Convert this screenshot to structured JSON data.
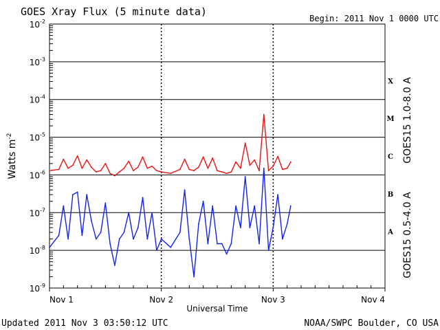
{
  "header": {
    "title": "GOES Xray Flux (5 minute data)",
    "begin": "Begin:  2011 Nov 1 0000 UTC"
  },
  "footer": {
    "updated": "Updated 2011 Nov  3 03:50:12 UTC",
    "credit": "NOAA/SWPC Boulder, CO USA"
  },
  "colors": {
    "long_channel": "#ee1111",
    "short_channel": "#1122ee",
    "grid": "#000000",
    "background": "#ffffff"
  },
  "chart_data": {
    "type": "line",
    "title": "GOES Xray Flux (5 minute data)",
    "xlabel": "Universal Time",
    "ylabel": "Watts m-2",
    "ylabel_base": "Watts m",
    "ylabel_exp": "-2",
    "yscale": "log",
    "ylim": [
      1e-09,
      0.01
    ],
    "xlim": [
      "2011-11-01 00:00",
      "2011-11-04 00:00"
    ],
    "x_ticks": [
      "Nov 1",
      "Nov 2",
      "Nov 3",
      "Nov 4"
    ],
    "y_ticks": [
      {
        "base": "10",
        "exp": "-2",
        "value": 0.01
      },
      {
        "base": "10",
        "exp": "-3",
        "value": 0.001
      },
      {
        "base": "10",
        "exp": "-4",
        "value": 0.0001
      },
      {
        "base": "10",
        "exp": "-5",
        "value": 1e-05
      },
      {
        "base": "10",
        "exp": "-6",
        "value": 1e-06
      },
      {
        "base": "10",
        "exp": "-7",
        "value": 1e-07
      },
      {
        "base": "10",
        "exp": "-8",
        "value": 1e-08
      },
      {
        "base": "10",
        "exp": "-9",
        "value": 1e-09
      }
    ],
    "flare_classes": [
      {
        "label": "X",
        "lower": 0.0001
      },
      {
        "label": "M",
        "lower": 1e-05
      },
      {
        "label": "C",
        "lower": 1e-06
      },
      {
        "label": "B",
        "lower": 1e-07
      },
      {
        "label": "A",
        "lower": 1e-08
      }
    ],
    "grid": true,
    "legend": "right",
    "series": [
      {
        "name": "GOES15 1.0-8.0 A",
        "color": "#ee1111",
        "x": [
          "2011-11-01 00:00",
          "2011-11-01 02:00",
          "2011-11-01 03:00",
          "2011-11-01 04:00",
          "2011-11-01 05:00",
          "2011-11-01 06:00",
          "2011-11-01 07:00",
          "2011-11-01 08:00",
          "2011-11-01 09:00",
          "2011-11-01 10:00",
          "2011-11-01 11:00",
          "2011-11-01 12:00",
          "2011-11-01 13:00",
          "2011-11-01 14:00",
          "2011-11-01 15:00",
          "2011-11-01 16:00",
          "2011-11-01 17:00",
          "2011-11-01 18:00",
          "2011-11-01 19:00",
          "2011-11-01 20:00",
          "2011-11-01 21:00",
          "2011-11-01 22:00",
          "2011-11-01 23:00",
          "2011-11-02 00:00",
          "2011-11-02 02:00",
          "2011-11-02 04:00",
          "2011-11-02 05:00",
          "2011-11-02 06:00",
          "2011-11-02 07:00",
          "2011-11-02 08:00",
          "2011-11-02 09:00",
          "2011-11-02 10:00",
          "2011-11-02 11:00",
          "2011-11-02 12:00",
          "2011-11-02 13:00",
          "2011-11-02 14:00",
          "2011-11-02 15:00",
          "2011-11-02 16:00",
          "2011-11-02 17:00",
          "2011-11-02 18:00",
          "2011-11-02 19:00",
          "2011-11-02 20:00",
          "2011-11-02 21:00",
          "2011-11-02 22:00",
          "2011-11-02 23:00",
          "2011-11-03 00:00",
          "2011-11-03 01:00",
          "2011-11-03 02:00",
          "2011-11-03 03:00",
          "2011-11-03 03:45"
        ],
        "y": [
          1.3e-06,
          1.4e-06,
          2.6e-06,
          1.5e-06,
          1.8e-06,
          3.2e-06,
          1.5e-06,
          2.5e-06,
          1.6e-06,
          1.2e-06,
          1.3e-06,
          2e-06,
          1.1e-06,
          9.5e-07,
          1.2e-06,
          1.5e-06,
          2.3e-06,
          1.3e-06,
          1.6e-06,
          3e-06,
          1.5e-06,
          1.7e-06,
          1.3e-06,
          1.2e-06,
          1.1e-06,
          1.4e-06,
          2.6e-06,
          1.4e-06,
          1.3e-06,
          1.6e-06,
          3e-06,
          1.5e-06,
          2.8e-06,
          1.3e-06,
          1.2e-06,
          1.1e-06,
          1.2e-06,
          2.2e-06,
          1.5e-06,
          7e-06,
          1.8e-06,
          2.5e-06,
          1.3e-06,
          4e-05,
          1.3e-06,
          1.7e-06,
          3.1e-06,
          1.4e-06,
          1.5e-06,
          2.2e-06
        ]
      },
      {
        "name": "GOES15 0.5-4.0 A",
        "color": "#1122ee",
        "x": [
          "2011-11-01 00:00",
          "2011-11-01 02:00",
          "2011-11-01 03:00",
          "2011-11-01 04:00",
          "2011-11-01 05:00",
          "2011-11-01 06:00",
          "2011-11-01 07:00",
          "2011-11-01 08:00",
          "2011-11-01 09:00",
          "2011-11-01 10:00",
          "2011-11-01 11:00",
          "2011-11-01 12:00",
          "2011-11-01 13:00",
          "2011-11-01 14:00",
          "2011-11-01 15:00",
          "2011-11-01 16:00",
          "2011-11-01 17:00",
          "2011-11-01 18:00",
          "2011-11-01 19:00",
          "2011-11-01 20:00",
          "2011-11-01 21:00",
          "2011-11-01 22:00",
          "2011-11-01 23:00",
          "2011-11-02 00:00",
          "2011-11-02 02:00",
          "2011-11-02 04:00",
          "2011-11-02 05:00",
          "2011-11-02 06:00",
          "2011-11-02 07:00",
          "2011-11-02 08:00",
          "2011-11-02 09:00",
          "2011-11-02 10:00",
          "2011-11-02 11:00",
          "2011-11-02 12:00",
          "2011-11-02 13:00",
          "2011-11-02 14:00",
          "2011-11-02 15:00",
          "2011-11-02 16:00",
          "2011-11-02 17:00",
          "2011-11-02 18:00",
          "2011-11-02 19:00",
          "2011-11-02 20:00",
          "2011-11-02 21:00",
          "2011-11-02 22:00",
          "2011-11-02 23:00",
          "2011-11-03 00:00",
          "2011-11-03 01:00",
          "2011-11-03 02:00",
          "2011-11-03 03:00",
          "2011-11-03 03:45"
        ],
        "y": [
          1.2e-08,
          2.5e-08,
          1.5e-07,
          2e-08,
          3e-07,
          3.5e-07,
          2.5e-08,
          3e-07,
          6e-08,
          2e-08,
          3e-08,
          1.8e-07,
          1.5e-08,
          4e-09,
          2e-08,
          3e-08,
          1e-07,
          2e-08,
          4e-08,
          2.5e-07,
          2e-08,
          1e-07,
          1e-08,
          2e-08,
          1.2e-08,
          3e-08,
          4e-07,
          2e-08,
          2e-09,
          5e-08,
          2e-07,
          1.5e-08,
          1.5e-07,
          1.5e-08,
          1.5e-08,
          8e-09,
          1.5e-08,
          1.5e-07,
          4e-08,
          9e-07,
          4e-08,
          1.5e-07,
          1.5e-08,
          1.5e-06,
          1e-08,
          4e-08,
          3e-07,
          2e-08,
          5e-08,
          1.5e-07
        ]
      }
    ]
  }
}
